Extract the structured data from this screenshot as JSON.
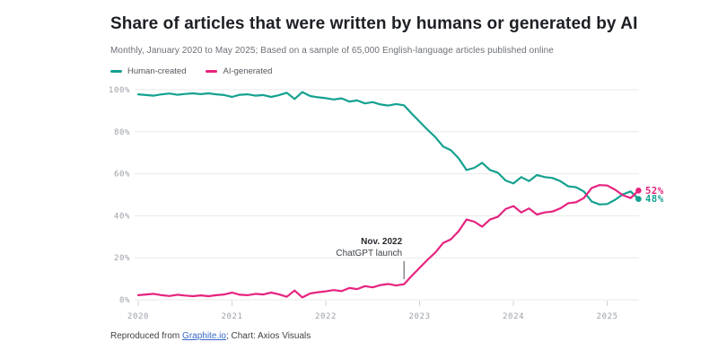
{
  "chart": {
    "title": "Share of articles that were written by humans or generated by AI",
    "subtitle": "Monthly, January 2020 to May 2025; Based on a sample of 65,000 English-language articles published online",
    "legend": [
      {
        "label": "Human-created",
        "color": "#14a190"
      },
      {
        "label": "AI-generated",
        "color": "#e6237f"
      }
    ]
  },
  "chart_data": {
    "type": "line",
    "x_unit": "month",
    "x_range": [
      "2020-01",
      "2025-05"
    ],
    "x_tick_labels": [
      "2020",
      "2021",
      "2022",
      "2023",
      "2024",
      "2025"
    ],
    "y_tick_labels": [
      "0%",
      "20%",
      "40%",
      "60%",
      "80%",
      "100%"
    ],
    "ylim": [
      0,
      100
    ],
    "grid": "horizontal",
    "legend_position": "top-left",
    "series": [
      {
        "name": "Human-created",
        "color": "#14a190",
        "end_label": "48%",
        "values": [
          97.8,
          97.5,
          97.2,
          97.8,
          98.2,
          97.6,
          98.0,
          98.3,
          97.9,
          98.3,
          97.8,
          97.5,
          96.6,
          97.6,
          97.8,
          97.2,
          97.5,
          96.6,
          97.4,
          98.6,
          95.6,
          98.9,
          97.0,
          96.4,
          96.0,
          95.4,
          95.9,
          94.4,
          94.9,
          93.5,
          94.1,
          93.0,
          92.5,
          93.2,
          92.6,
          88.6,
          84.8,
          81.0,
          77.5,
          73.0,
          71.2,
          67.3,
          61.8,
          62.8,
          65.2,
          61.8,
          60.5,
          56.8,
          55.4,
          58.4,
          56.5,
          59.4,
          58.4,
          58.0,
          56.5,
          54.0,
          53.6,
          51.6,
          46.8,
          45.4,
          45.6,
          47.6,
          50.2,
          51.6,
          48.0
        ]
      },
      {
        "name": "AI-generated",
        "color": "#e6237f",
        "end_label": "52%",
        "values": [
          2.2,
          2.5,
          2.8,
          2.2,
          1.8,
          2.4,
          2.0,
          1.7,
          2.1,
          1.7,
          2.2,
          2.5,
          3.4,
          2.4,
          2.2,
          2.8,
          2.5,
          3.4,
          2.6,
          1.4,
          4.4,
          1.1,
          3.0,
          3.6,
          4.0,
          4.6,
          4.1,
          5.6,
          5.1,
          6.5,
          5.9,
          7.0,
          7.5,
          6.8,
          7.4,
          11.4,
          15.2,
          19.0,
          22.5,
          27.0,
          28.8,
          32.7,
          38.2,
          37.2,
          34.8,
          38.2,
          39.5,
          43.2,
          44.6,
          41.6,
          43.5,
          40.6,
          41.6,
          42.0,
          43.5,
          46.0,
          46.4,
          48.4,
          53.2,
          54.6,
          54.4,
          52.4,
          49.8,
          48.4,
          52.0
        ]
      }
    ],
    "annotation": {
      "line1": "Nov. 2022",
      "line2": "ChatGPT launch",
      "x_index": 34,
      "pointer_top_pct": 18.4,
      "pointer_bottom_pct": 9.8
    }
  },
  "footer": {
    "prefix": "Reproduced from ",
    "link_text": "Graphite.io",
    "suffix": "; Chart: Axios Visuals"
  }
}
